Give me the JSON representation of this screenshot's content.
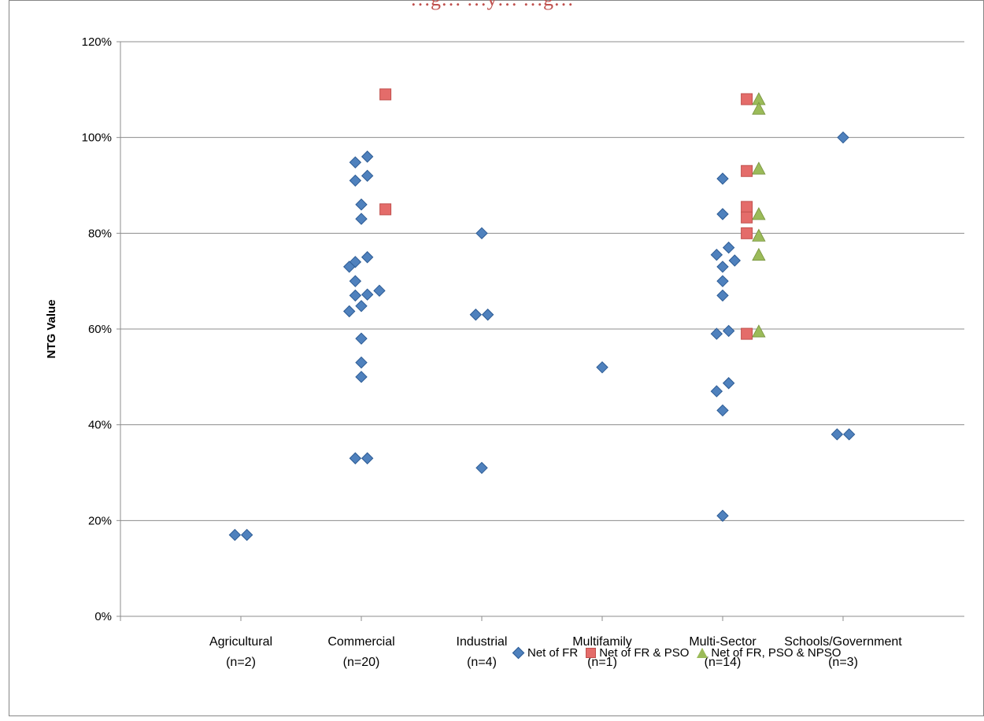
{
  "chart_data": {
    "type": "scatter",
    "title": "…g… …y… …g…",
    "ylabel": "NTG Value",
    "ylim": [
      0,
      1.2
    ],
    "y_ticks": [
      "0%",
      "20%",
      "40%",
      "60%",
      "80%",
      "100%",
      "120%"
    ],
    "gridlines": true,
    "legend_position": "bottom-right",
    "categories": [
      {
        "line1": "Agricultural",
        "line2": "(n=2)"
      },
      {
        "line1": "Commercial",
        "line2": "(n=20)"
      },
      {
        "line1": "Industrial",
        "line2": "(n=4)"
      },
      {
        "line1": "Multifamily",
        "line2": "(n=1)"
      },
      {
        "line1": "Multi-Sector",
        "line2": "(n=14)"
      },
      {
        "line1": "Schools/Government",
        "line2": "(n=3)"
      }
    ],
    "series": [
      {
        "name": "Net of FR",
        "marker": "diamond",
        "color": "#4f81bd",
        "points": [
          {
            "category": 0,
            "offset": -0.05,
            "y": 0.17
          },
          {
            "category": 0,
            "offset": 0.05,
            "y": 0.17
          },
          {
            "category": 1,
            "offset": 0.05,
            "y": 0.96
          },
          {
            "category": 1,
            "offset": -0.05,
            "y": 0.948
          },
          {
            "category": 1,
            "offset": 0.05,
            "y": 0.92
          },
          {
            "category": 1,
            "offset": -0.05,
            "y": 0.91
          },
          {
            "category": 1,
            "offset": 0.0,
            "y": 0.86
          },
          {
            "category": 1,
            "offset": 0.0,
            "y": 0.83
          },
          {
            "category": 1,
            "offset": 0.05,
            "y": 0.75
          },
          {
            "category": 1,
            "offset": -0.05,
            "y": 0.74
          },
          {
            "category": 1,
            "offset": -0.1,
            "y": 0.73
          },
          {
            "category": 1,
            "offset": -0.05,
            "y": 0.7
          },
          {
            "category": 1,
            "offset": 0.15,
            "y": 0.68
          },
          {
            "category": 1,
            "offset": 0.05,
            "y": 0.672
          },
          {
            "category": 1,
            "offset": -0.05,
            "y": 0.67
          },
          {
            "category": 1,
            "offset": 0.0,
            "y": 0.648
          },
          {
            "category": 1,
            "offset": -0.1,
            "y": 0.637
          },
          {
            "category": 1,
            "offset": 0.0,
            "y": 0.58
          },
          {
            "category": 1,
            "offset": 0.0,
            "y": 0.53
          },
          {
            "category": 1,
            "offset": 0.0,
            "y": 0.5
          },
          {
            "category": 1,
            "offset": -0.05,
            "y": 0.33
          },
          {
            "category": 1,
            "offset": 0.05,
            "y": 0.33
          },
          {
            "category": 2,
            "offset": 0.0,
            "y": 0.8
          },
          {
            "category": 2,
            "offset": -0.05,
            "y": 0.63
          },
          {
            "category": 2,
            "offset": 0.05,
            "y": 0.63
          },
          {
            "category": 2,
            "offset": 0.0,
            "y": 0.31
          },
          {
            "category": 3,
            "offset": 0.0,
            "y": 0.52
          },
          {
            "category": 4,
            "offset": 0.0,
            "y": 0.914
          },
          {
            "category": 4,
            "offset": 0.0,
            "y": 0.84
          },
          {
            "category": 4,
            "offset": 0.05,
            "y": 0.77
          },
          {
            "category": 4,
            "offset": -0.05,
            "y": 0.755
          },
          {
            "category": 4,
            "offset": 0.1,
            "y": 0.743
          },
          {
            "category": 4,
            "offset": 0.0,
            "y": 0.73
          },
          {
            "category": 4,
            "offset": 0.0,
            "y": 0.7
          },
          {
            "category": 4,
            "offset": 0.0,
            "y": 0.67
          },
          {
            "category": 4,
            "offset": 0.05,
            "y": 0.596
          },
          {
            "category": 4,
            "offset": -0.05,
            "y": 0.59
          },
          {
            "category": 4,
            "offset": 0.05,
            "y": 0.487
          },
          {
            "category": 4,
            "offset": -0.05,
            "y": 0.47
          },
          {
            "category": 4,
            "offset": 0.0,
            "y": 0.43
          },
          {
            "category": 4,
            "offset": 0.0,
            "y": 0.21
          },
          {
            "category": 5,
            "offset": 0.0,
            "y": 1.0
          },
          {
            "category": 5,
            "offset": -0.05,
            "y": 0.38
          },
          {
            "category": 5,
            "offset": 0.05,
            "y": 0.38
          }
        ]
      },
      {
        "name": "Net of FR & PSO",
        "marker": "square",
        "color": "#e46c6a",
        "points": [
          {
            "category": 1,
            "offset": 0.2,
            "y": 1.09
          },
          {
            "category": 1,
            "offset": 0.2,
            "y": 0.85
          },
          {
            "category": 4,
            "offset": 0.2,
            "y": 1.08
          },
          {
            "category": 4,
            "offset": 0.2,
            "y": 0.93
          },
          {
            "category": 4,
            "offset": 0.2,
            "y": 0.855
          },
          {
            "category": 4,
            "offset": 0.2,
            "y": 0.833
          },
          {
            "category": 4,
            "offset": 0.2,
            "y": 0.8
          },
          {
            "category": 4,
            "offset": 0.2,
            "y": 0.59
          }
        ]
      },
      {
        "name": "Net of FR, PSO & NPSO",
        "marker": "triangle",
        "color": "#9bbb59",
        "points": [
          {
            "category": 4,
            "offset": 0.3,
            "y": 1.08
          },
          {
            "category": 4,
            "offset": 0.3,
            "y": 1.06
          },
          {
            "category": 4,
            "offset": 0.3,
            "y": 0.935
          },
          {
            "category": 4,
            "offset": 0.3,
            "y": 0.84
          },
          {
            "category": 4,
            "offset": 0.3,
            "y": 0.795
          },
          {
            "category": 4,
            "offset": 0.3,
            "y": 0.755
          },
          {
            "category": 4,
            "offset": 0.3,
            "y": 0.595
          }
        ]
      }
    ]
  }
}
